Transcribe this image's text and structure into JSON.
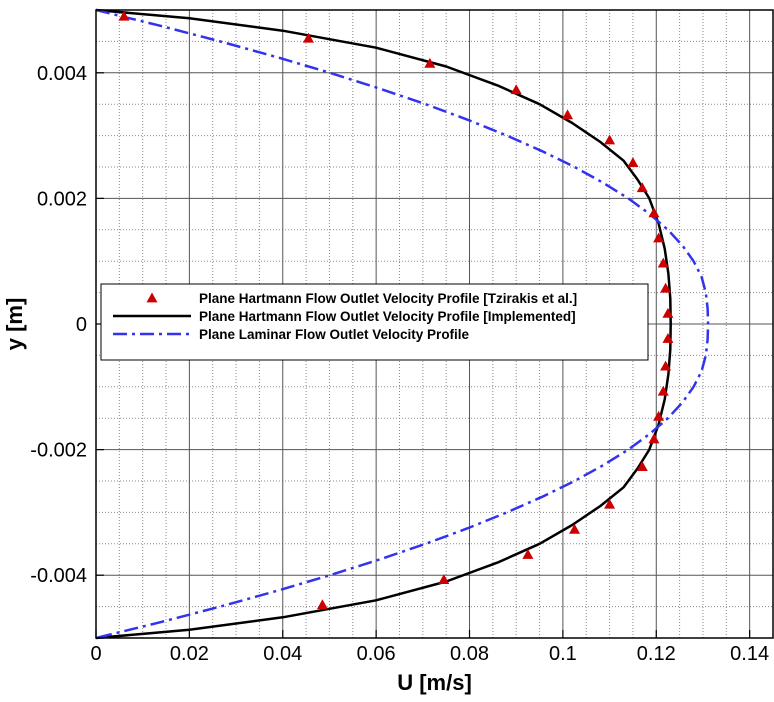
{
  "chart_data": {
    "type": "line",
    "title": "",
    "xlabel": "U [m/s]",
    "ylabel": "y [m]",
    "xlim": [
      0,
      0.145
    ],
    "ylim": [
      -0.005,
      0.005
    ],
    "grid": true,
    "legend_position": "center-left",
    "x_ticks": [
      0,
      0.02,
      0.04,
      0.06,
      0.08,
      0.1,
      0.12,
      0.14
    ],
    "x_tick_labels": [
      "0",
      "0.02",
      "0.04",
      "0.06",
      "0.08",
      "0.1",
      "0.12",
      "0.14"
    ],
    "y_ticks": [
      -0.004,
      -0.002,
      0,
      0.002,
      0.004
    ],
    "y_tick_labels": [
      "-0.004",
      "-0.002",
      "0",
      "0.002",
      "0.004"
    ],
    "series": [
      {
        "name": "Plane Hartmann Flow Outlet Velocity Profile [Tzirakis et al.]",
        "style": "markers",
        "marker": "triangle",
        "color": "#cc0000",
        "points": [
          [
            0.006,
            0.0049
          ],
          [
            0.0455,
            0.00455
          ],
          [
            0.0715,
            0.00415
          ],
          [
            0.09,
            0.00373
          ],
          [
            0.101,
            0.00333
          ],
          [
            0.11,
            0.00293
          ],
          [
            0.115,
            0.00257
          ],
          [
            0.117,
            0.00217
          ],
          [
            0.1195,
            0.00177
          ],
          [
            0.1205,
            0.00137
          ],
          [
            0.1215,
            0.00097
          ],
          [
            0.122,
            0.00057
          ],
          [
            0.1225,
            0.00017
          ],
          [
            0.1225,
            -0.00023
          ],
          [
            0.122,
            -0.00067
          ],
          [
            0.1215,
            -0.00107
          ],
          [
            0.1205,
            -0.00147
          ],
          [
            0.1195,
            -0.00183
          ],
          [
            0.117,
            -0.00227
          ],
          [
            0.11,
            -0.00287
          ],
          [
            0.1025,
            -0.00327
          ],
          [
            0.0925,
            -0.00367
          ],
          [
            0.0745,
            -0.00407
          ],
          [
            0.0485,
            -0.00447
          ]
        ]
      },
      {
        "name": "Plane Hartmann Flow Outlet Velocity Profile [Implemented]",
        "style": "solid",
        "color": "#000000",
        "points": [
          [
            0,
            0.005
          ],
          [
            0.02,
            0.00487
          ],
          [
            0.04,
            0.00467
          ],
          [
            0.06,
            0.0044
          ],
          [
            0.075,
            0.0041
          ],
          [
            0.086,
            0.0038
          ],
          [
            0.095,
            0.0035
          ],
          [
            0.102,
            0.0032
          ],
          [
            0.108,
            0.0029
          ],
          [
            0.113,
            0.0026
          ],
          [
            0.116,
            0.0023
          ],
          [
            0.1185,
            0.002
          ],
          [
            0.1205,
            0.0016
          ],
          [
            0.1218,
            0.0012
          ],
          [
            0.1226,
            0.0008
          ],
          [
            0.123,
            0.0004
          ],
          [
            0.1231,
            0
          ],
          [
            0.123,
            -0.0004
          ],
          [
            0.1226,
            -0.0008
          ],
          [
            0.1218,
            -0.0012
          ],
          [
            0.1205,
            -0.0016
          ],
          [
            0.1185,
            -0.002
          ],
          [
            0.116,
            -0.0023
          ],
          [
            0.113,
            -0.0026
          ],
          [
            0.108,
            -0.0029
          ],
          [
            0.102,
            -0.0032
          ],
          [
            0.095,
            -0.0035
          ],
          [
            0.086,
            -0.0038
          ],
          [
            0.075,
            -0.0041
          ],
          [
            0.06,
            -0.0044
          ],
          [
            0.04,
            -0.00467
          ],
          [
            0.02,
            -0.00487
          ],
          [
            0,
            -0.005
          ]
        ]
      },
      {
        "name": "Plane Laminar Flow Outlet Velocity Profile",
        "style": "dash-dot",
        "color": "#3333ee",
        "points": [
          [
            0,
            0.005
          ],
          [
            0.0137,
            0.00475
          ],
          [
            0.0266,
            0.0045
          ],
          [
            0.0387,
            0.00425
          ],
          [
            0.0501,
            0.004
          ],
          [
            0.0607,
            0.00375
          ],
          [
            0.0706,
            0.0035
          ],
          [
            0.0797,
            0.00325
          ],
          [
            0.088,
            0.003
          ],
          [
            0.0956,
            0.00275
          ],
          [
            0.1025,
            0.0025
          ],
          [
            0.1086,
            0.00225
          ],
          [
            0.114,
            0.002
          ],
          [
            0.1186,
            0.00175
          ],
          [
            0.1225,
            0.0015
          ],
          [
            0.1256,
            0.00125
          ],
          [
            0.128,
            0.001
          ],
          [
            0.1297,
            0.00075
          ],
          [
            0.1306,
            0.0005
          ],
          [
            0.131,
            0.00025
          ],
          [
            0.1311,
            0
          ],
          [
            0.131,
            -0.00025
          ],
          [
            0.1306,
            -0.0005
          ],
          [
            0.1297,
            -0.00075
          ],
          [
            0.128,
            -0.001
          ],
          [
            0.1256,
            -0.00125
          ],
          [
            0.1225,
            -0.0015
          ],
          [
            0.1186,
            -0.00175
          ],
          [
            0.114,
            -0.002
          ],
          [
            0.1086,
            -0.00225
          ],
          [
            0.1025,
            -0.0025
          ],
          [
            0.0956,
            -0.00275
          ],
          [
            0.088,
            -0.003
          ],
          [
            0.0797,
            -0.00325
          ],
          [
            0.0706,
            -0.0035
          ],
          [
            0.0607,
            -0.00375
          ],
          [
            0.0501,
            -0.004
          ],
          [
            0.0387,
            -0.00425
          ],
          [
            0.0266,
            -0.0045
          ],
          [
            0.0137,
            -0.00475
          ],
          [
            0,
            -0.005
          ]
        ]
      }
    ]
  }
}
